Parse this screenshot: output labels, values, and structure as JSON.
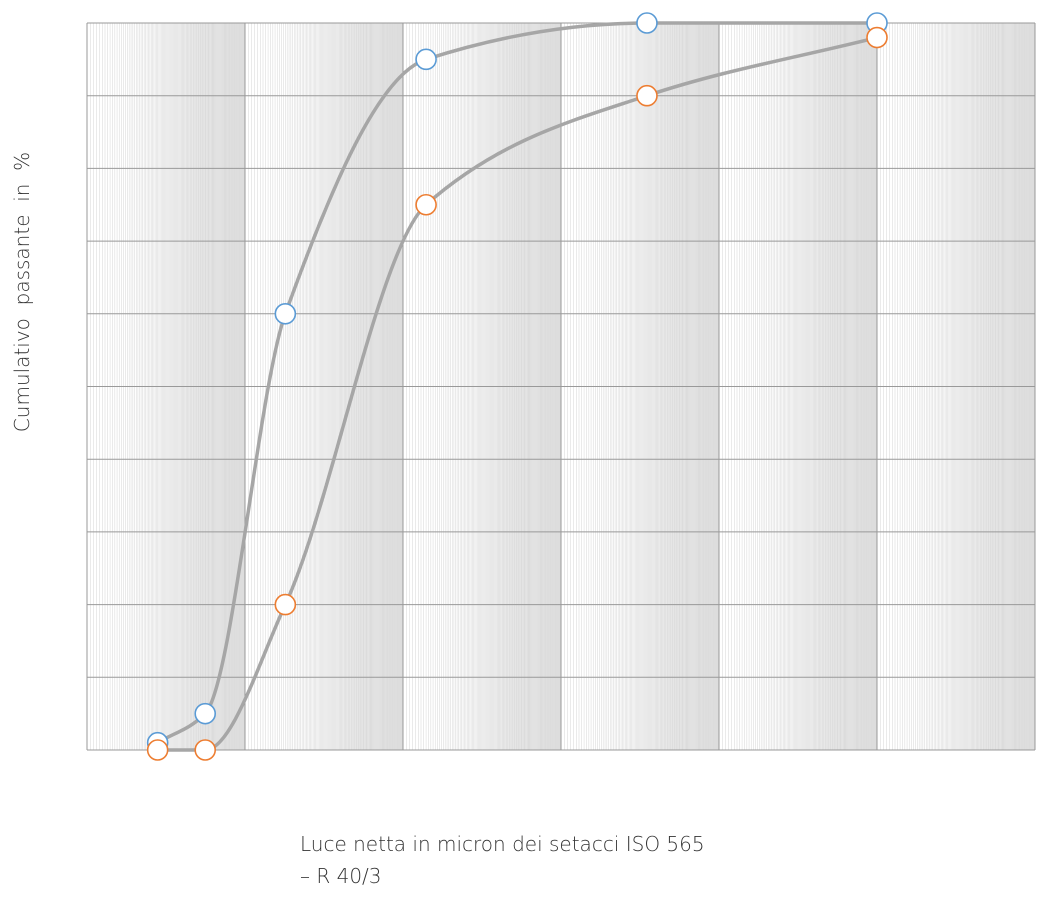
{
  "chart_data": {
    "type": "line",
    "title": "",
    "ylabel": "Cumulativo  passante  in  %",
    "xlabel_lines": [
      "Luce netta in micron dei setacci  ISO 565",
      "– R 40/3"
    ],
    "xlabel": "Luce netta in micron dei setacci  ISO 565 – R 40/3",
    "x_scale": "log",
    "xlim": [
      1,
      1000000
    ],
    "ylim": [
      0,
      100
    ],
    "grid": true,
    "legend": "none",
    "series": [
      {
        "color": "#5b9bd5",
        "x": [
          2.8,
          5.6,
          18,
          140,
          3500,
          100000
        ],
        "y": [
          1,
          5,
          60,
          95,
          100,
          100
        ]
      },
      {
        "color": "#ed7d31",
        "x": [
          2.8,
          5.6,
          18,
          140,
          3500,
          100000
        ],
        "y": [
          0,
          0,
          20,
          75,
          90,
          98
        ]
      }
    ],
    "line_color": "#a6a6a6"
  }
}
